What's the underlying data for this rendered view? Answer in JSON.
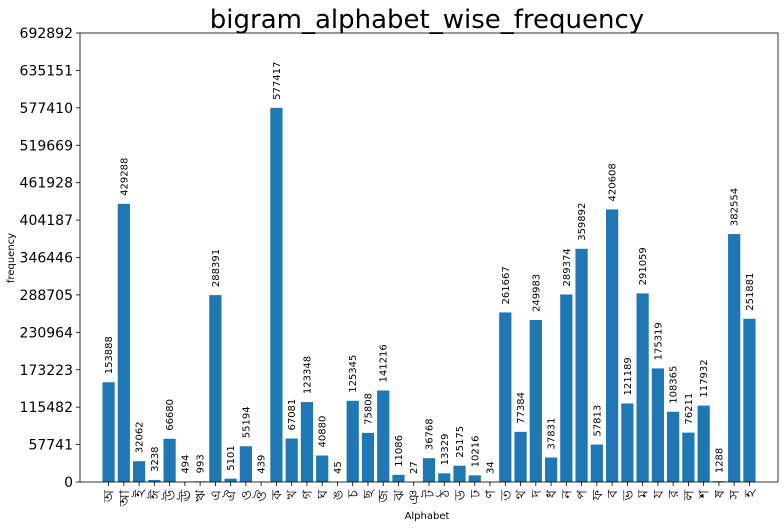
{
  "chart_data": {
    "type": "bar",
    "title": "bigram_alphabet_wise_frequency",
    "xlabel": "Alphabet",
    "ylabel": "frequency",
    "ylim": [
      0,
      692892
    ],
    "yticks": [
      0,
      57741,
      115482,
      173223,
      230964,
      288705,
      346446,
      404187,
      461928,
      519669,
      577410,
      635151,
      692892
    ],
    "color": "#1f77b4",
    "categories": [
      "অ",
      "আ",
      "ই",
      "ঈ",
      "উ",
      "ঊ",
      "ঋ",
      "এ",
      "ঐ",
      "ও",
      "ঔ",
      "ক",
      "খ",
      "গ",
      "ঘ",
      "ঙ",
      "চ",
      "ছ",
      "জ",
      "ঝ",
      "ঞ",
      "ট",
      "ঠ",
      "ড",
      "ঢ",
      "ণ",
      "ত",
      "থ",
      "দ",
      "ধ",
      "ন",
      "প",
      "ফ",
      "ব",
      "ভ",
      "ম",
      "য",
      "র",
      "ল",
      "শ",
      "ষ",
      "স",
      "হ"
    ],
    "values": [
      153888,
      429288,
      32062,
      3238,
      66680,
      494,
      993,
      288391,
      5101,
      55194,
      439,
      577417,
      67081,
      123348,
      40880,
      45,
      125345,
      75808,
      141216,
      11086,
      27,
      36768,
      13329,
      25175,
      10216,
      34,
      261667,
      77384,
      249983,
      37831,
      289374,
      359892,
      57813,
      420608,
      121189,
      291059,
      175319,
      108365,
      76211,
      117932,
      1288,
      382554,
      251881
    ]
  }
}
